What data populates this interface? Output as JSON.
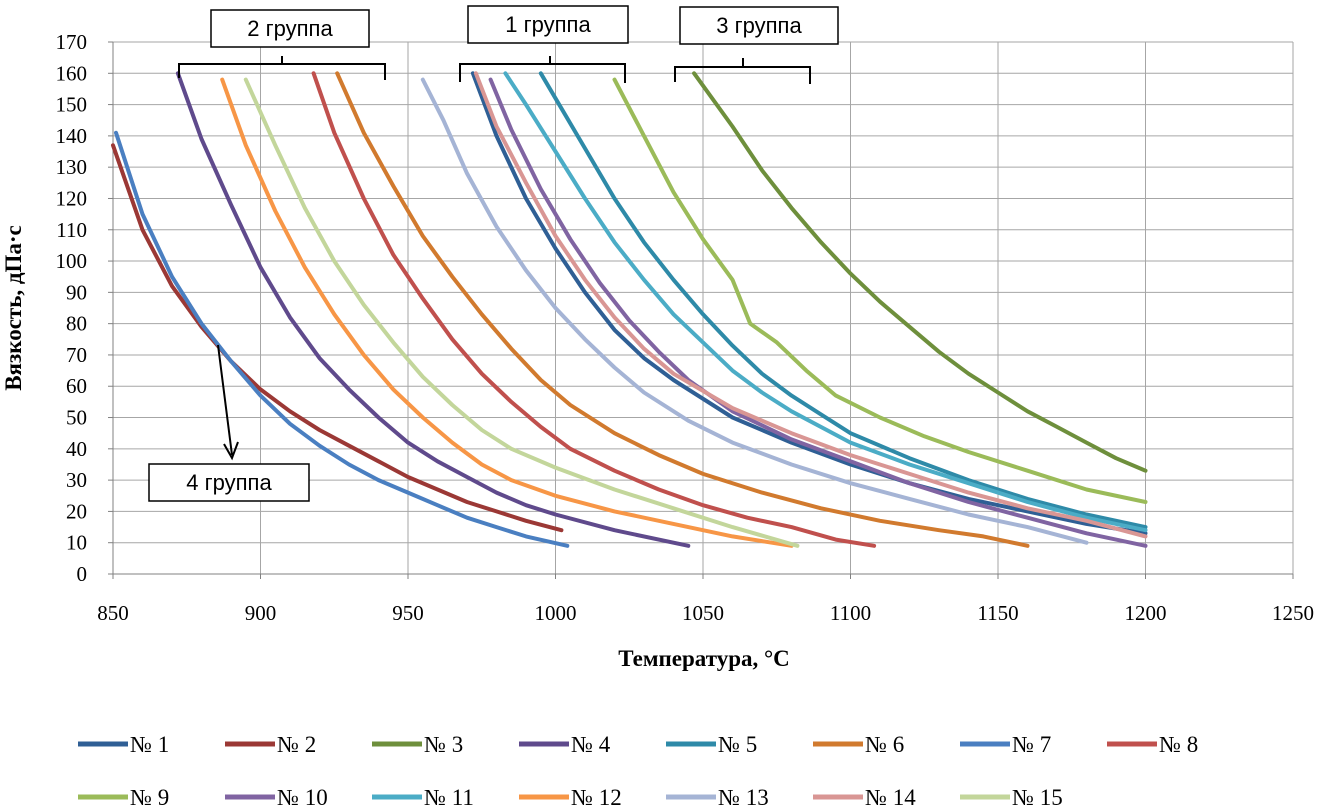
{
  "chart_data": {
    "type": "line",
    "title": "",
    "xlabel": "Температура, °С",
    "ylabel": "Вязкость, дПа·с",
    "xlim": [
      850,
      1250
    ],
    "ylim": [
      0,
      170
    ],
    "x_ticks": [
      850,
      900,
      950,
      1000,
      1050,
      1100,
      1150,
      1200,
      1250
    ],
    "y_ticks": [
      0,
      10,
      20,
      30,
      40,
      50,
      60,
      70,
      80,
      90,
      100,
      110,
      120,
      130,
      140,
      150,
      160,
      170
    ],
    "grid": true,
    "legend_position": "bottom",
    "series": [
      {
        "name": "№ 1",
        "color": "#2f5f95",
        "points": [
          [
            972,
            160
          ],
          [
            980,
            140
          ],
          [
            990,
            120
          ],
          [
            1000,
            104
          ],
          [
            1010,
            90
          ],
          [
            1020,
            78
          ],
          [
            1030,
            69
          ],
          [
            1040,
            62
          ],
          [
            1060,
            50
          ],
          [
            1080,
            42
          ],
          [
            1100,
            35
          ],
          [
            1120,
            29
          ],
          [
            1140,
            24
          ],
          [
            1160,
            20
          ],
          [
            1180,
            16
          ],
          [
            1200,
            13
          ]
        ]
      },
      {
        "name": "№ 2",
        "color": "#9b3835",
        "points": [
          [
            850,
            137
          ],
          [
            860,
            110
          ],
          [
            870,
            92
          ],
          [
            880,
            79
          ],
          [
            890,
            68
          ],
          [
            900,
            59
          ],
          [
            910,
            52
          ],
          [
            920,
            46
          ],
          [
            930,
            41
          ],
          [
            940,
            36
          ],
          [
            950,
            31
          ],
          [
            960,
            27
          ],
          [
            970,
            23
          ],
          [
            980,
            20
          ],
          [
            990,
            17
          ],
          [
            1002,
            14
          ]
        ]
      },
      {
        "name": "№ 3",
        "color": "#6e8f3c",
        "points": [
          [
            1047,
            160
          ],
          [
            1060,
            143
          ],
          [
            1070,
            129
          ],
          [
            1080,
            117
          ],
          [
            1090,
            106
          ],
          [
            1100,
            96
          ],
          [
            1110,
            87
          ],
          [
            1120,
            79
          ],
          [
            1130,
            71
          ],
          [
            1140,
            64
          ],
          [
            1150,
            58
          ],
          [
            1160,
            52
          ],
          [
            1170,
            47
          ],
          [
            1180,
            42
          ],
          [
            1190,
            37
          ],
          [
            1200,
            33
          ]
        ]
      },
      {
        "name": "№ 4",
        "color": "#5f4a8c",
        "points": [
          [
            872,
            160
          ],
          [
            880,
            139
          ],
          [
            890,
            118
          ],
          [
            900,
            98
          ],
          [
            910,
            82
          ],
          [
            920,
            69
          ],
          [
            930,
            59
          ],
          [
            940,
            50
          ],
          [
            950,
            42
          ],
          [
            960,
            36
          ],
          [
            970,
            31
          ],
          [
            980,
            26
          ],
          [
            990,
            22
          ],
          [
            1000,
            19
          ],
          [
            1020,
            14
          ],
          [
            1045,
            9
          ]
        ]
      },
      {
        "name": "№ 5",
        "color": "#2e8aa8",
        "points": [
          [
            995,
            160
          ],
          [
            1000,
            152
          ],
          [
            1010,
            136
          ],
          [
            1020,
            120
          ],
          [
            1030,
            106
          ],
          [
            1040,
            94
          ],
          [
            1050,
            83
          ],
          [
            1060,
            73
          ],
          [
            1070,
            64
          ],
          [
            1080,
            57
          ],
          [
            1090,
            51
          ],
          [
            1100,
            45
          ],
          [
            1120,
            37
          ],
          [
            1140,
            30
          ],
          [
            1160,
            24
          ],
          [
            1180,
            19
          ],
          [
            1200,
            15
          ]
        ]
      },
      {
        "name": "№ 6",
        "color": "#d17a2e",
        "points": [
          [
            926,
            160
          ],
          [
            935,
            141
          ],
          [
            945,
            124
          ],
          [
            955,
            108
          ],
          [
            965,
            95
          ],
          [
            975,
            83
          ],
          [
            985,
            72
          ],
          [
            995,
            62
          ],
          [
            1005,
            54
          ],
          [
            1020,
            45
          ],
          [
            1035,
            38
          ],
          [
            1050,
            32
          ],
          [
            1070,
            26
          ],
          [
            1090,
            21
          ],
          [
            1110,
            17
          ],
          [
            1130,
            14
          ],
          [
            1145,
            12
          ],
          [
            1160,
            9
          ]
        ]
      },
      {
        "name": "№ 7",
        "color": "#4a7fc1",
        "points": [
          [
            851,
            141
          ],
          [
            860,
            115
          ],
          [
            870,
            95
          ],
          [
            880,
            80
          ],
          [
            890,
            68
          ],
          [
            900,
            57
          ],
          [
            910,
            48
          ],
          [
            920,
            41
          ],
          [
            930,
            35
          ],
          [
            940,
            30
          ],
          [
            950,
            26
          ],
          [
            960,
            22
          ],
          [
            970,
            18
          ],
          [
            980,
            15
          ],
          [
            990,
            12
          ],
          [
            1004,
            9
          ]
        ]
      },
      {
        "name": "№ 8",
        "color": "#c0504d",
        "points": [
          [
            918,
            160
          ],
          [
            925,
            141
          ],
          [
            935,
            120
          ],
          [
            945,
            102
          ],
          [
            955,
            88
          ],
          [
            965,
            75
          ],
          [
            975,
            64
          ],
          [
            985,
            55
          ],
          [
            995,
            47
          ],
          [
            1005,
            40
          ],
          [
            1020,
            33
          ],
          [
            1035,
            27
          ],
          [
            1050,
            22
          ],
          [
            1065,
            18
          ],
          [
            1080,
            15
          ],
          [
            1095,
            11
          ],
          [
            1108,
            9
          ]
        ]
      },
      {
        "name": "№ 9",
        "color": "#9bbb59",
        "points": [
          [
            1020,
            158
          ],
          [
            1030,
            140
          ],
          [
            1040,
            122
          ],
          [
            1050,
            107
          ],
          [
            1060,
            94
          ],
          [
            1066,
            80
          ],
          [
            1075,
            74
          ],
          [
            1085,
            65
          ],
          [
            1095,
            57
          ],
          [
            1110,
            50
          ],
          [
            1125,
            44
          ],
          [
            1140,
            39
          ],
          [
            1160,
            33
          ],
          [
            1180,
            27
          ],
          [
            1200,
            23
          ]
        ]
      },
      {
        "name": "№ 10",
        "color": "#8064a2",
        "points": [
          [
            978,
            158
          ],
          [
            985,
            142
          ],
          [
            995,
            123
          ],
          [
            1005,
            107
          ],
          [
            1015,
            93
          ],
          [
            1025,
            81
          ],
          [
            1035,
            71
          ],
          [
            1045,
            62
          ],
          [
            1060,
            52
          ],
          [
            1080,
            43
          ],
          [
            1100,
            36
          ],
          [
            1120,
            29
          ],
          [
            1140,
            23
          ],
          [
            1160,
            18
          ],
          [
            1180,
            13
          ],
          [
            1200,
            9
          ]
        ]
      },
      {
        "name": "№ 11",
        "color": "#4bacc6",
        "points": [
          [
            983,
            160
          ],
          [
            990,
            150
          ],
          [
            1000,
            135
          ],
          [
            1010,
            120
          ],
          [
            1020,
            106
          ],
          [
            1030,
            94
          ],
          [
            1040,
            83
          ],
          [
            1050,
            74
          ],
          [
            1060,
            65
          ],
          [
            1070,
            58
          ],
          [
            1080,
            52
          ],
          [
            1100,
            42
          ],
          [
            1120,
            35
          ],
          [
            1140,
            29
          ],
          [
            1160,
            23
          ],
          [
            1180,
            18
          ],
          [
            1200,
            14
          ]
        ]
      },
      {
        "name": "№ 12",
        "color": "#f79646",
        "points": [
          [
            887,
            158
          ],
          [
            895,
            137
          ],
          [
            905,
            116
          ],
          [
            915,
            98
          ],
          [
            925,
            83
          ],
          [
            935,
            70
          ],
          [
            945,
            59
          ],
          [
            955,
            50
          ],
          [
            965,
            42
          ],
          [
            975,
            35
          ],
          [
            985,
            30
          ],
          [
            1000,
            25
          ],
          [
            1020,
            20
          ],
          [
            1040,
            16
          ],
          [
            1060,
            12
          ],
          [
            1080,
            9
          ]
        ]
      },
      {
        "name": "№ 13",
        "color": "#a5b4d5",
        "points": [
          [
            955,
            158
          ],
          [
            962,
            145
          ],
          [
            970,
            128
          ],
          [
            980,
            111
          ],
          [
            990,
            97
          ],
          [
            1000,
            85
          ],
          [
            1010,
            75
          ],
          [
            1020,
            66
          ],
          [
            1030,
            58
          ],
          [
            1045,
            49
          ],
          [
            1060,
            42
          ],
          [
            1080,
            35
          ],
          [
            1100,
            29
          ],
          [
            1120,
            24
          ],
          [
            1140,
            19
          ],
          [
            1160,
            15
          ],
          [
            1180,
            10
          ]
        ]
      },
      {
        "name": "№ 14",
        "color": "#d99694",
        "points": [
          [
            973,
            160
          ],
          [
            980,
            143
          ],
          [
            990,
            125
          ],
          [
            1000,
            108
          ],
          [
            1010,
            94
          ],
          [
            1020,
            82
          ],
          [
            1030,
            72
          ],
          [
            1040,
            64
          ],
          [
            1060,
            53
          ],
          [
            1080,
            45
          ],
          [
            1100,
            38
          ],
          [
            1120,
            32
          ],
          [
            1140,
            26
          ],
          [
            1160,
            21
          ],
          [
            1180,
            17
          ],
          [
            1200,
            12
          ]
        ]
      },
      {
        "name": "№ 15",
        "color": "#c3d69b",
        "points": [
          [
            895,
            158
          ],
          [
            905,
            137
          ],
          [
            915,
            117
          ],
          [
            925,
            100
          ],
          [
            935,
            86
          ],
          [
            945,
            74
          ],
          [
            955,
            63
          ],
          [
            965,
            54
          ],
          [
            975,
            46
          ],
          [
            985,
            40
          ],
          [
            1000,
            34
          ],
          [
            1020,
            27
          ],
          [
            1040,
            21
          ],
          [
            1060,
            15
          ],
          [
            1082,
            9
          ]
        ]
      }
    ],
    "annotations": [
      {
        "text": "2 группа",
        "bracket_from": 871,
        "bracket_to": 943
      },
      {
        "text": "1 группа",
        "bracket_from": 966,
        "bracket_to": 1024
      },
      {
        "text": "3 группа",
        "bracket_from": 1040,
        "bracket_to": 1086
      },
      {
        "text": "4 группа"
      }
    ]
  }
}
